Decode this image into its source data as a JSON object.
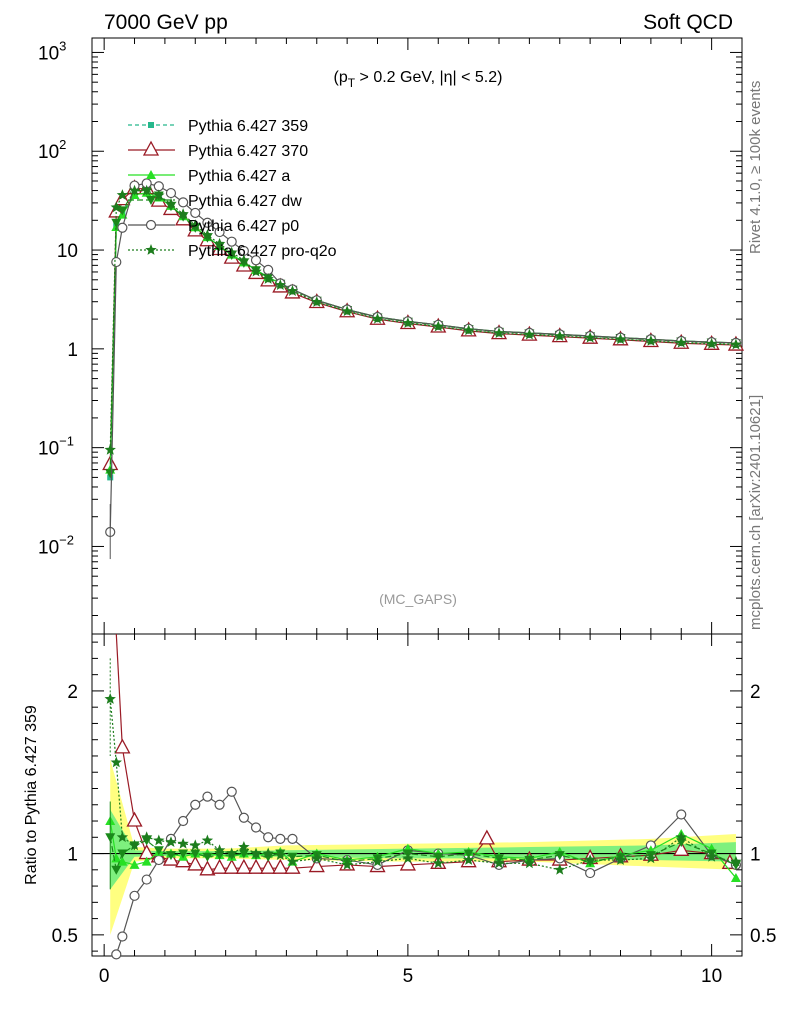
{
  "header": {
    "left": "7000 GeV pp",
    "right": "Soft QCD"
  },
  "side": {
    "rivet": "Rivet 4.1.0, ≥ 100k events",
    "mcplots": "mcplots.cern.ch [arXiv:2401.10621]"
  },
  "colors": {
    "c359": "#26b88c",
    "c370": "#9a1a25",
    "a": "#27e024",
    "dw": "#1a8a1a",
    "p0": "#555555",
    "q2o": "#1d7d1d",
    "band_yellow": "#ffff80",
    "band_green": "#7ef07e"
  },
  "chart_data": [
    {
      "type": "line",
      "panel": "main",
      "title": "(p_T > 0.2 GeV, |η| < 5.2)",
      "title_parts": {
        "p": "(p",
        "sub": "T",
        "rest": " > 0.2 GeV, |η| < 5.2)"
      },
      "watermark": "(MC_GAPS)",
      "xlabel": "",
      "ylabel": "",
      "yscale": "log",
      "xlim": [
        -0.2,
        10.5
      ],
      "ylim": [
        0.0013,
        1400
      ],
      "yticks": [
        {
          "v": 0.01,
          "base": "10",
          "exp": "−2"
        },
        {
          "v": 0.1,
          "base": "10",
          "exp": "−1"
        },
        {
          "v": 1,
          "base": "1",
          "exp": ""
        },
        {
          "v": 10,
          "base": "10",
          "exp": ""
        },
        {
          "v": 100,
          "base": "10",
          "exp": "2"
        },
        {
          "v": 1000,
          "base": "10",
          "exp": "3"
        }
      ],
      "legend_position": "top-left",
      "series": [
        {
          "id": "c359",
          "name": "Pythia 6.427 359",
          "marker": "square",
          "dash": "4,3"
        },
        {
          "id": "c370",
          "name": "Pythia 6.427 370",
          "marker": "triangle-open",
          "dash": ""
        },
        {
          "id": "a",
          "name": "Pythia 6.427 a",
          "marker": "triangle",
          "dash": ""
        },
        {
          "id": "dw",
          "name": "Pythia 6.427 dw",
          "marker": "triangle-down",
          "dash": "6,3"
        },
        {
          "id": "p0",
          "name": "Pythia 6.427 p0",
          "marker": "circle-open",
          "dash": ""
        },
        {
          "id": "q2o",
          "name": "Pythia 6.427 pro-q2o",
          "marker": "star",
          "dash": "2,2"
        }
      ],
      "x": [
        0.1,
        0.2,
        0.3,
        0.5,
        0.7,
        0.9,
        1.1,
        1.3,
        1.5,
        1.7,
        1.9,
        2.1,
        2.3,
        2.5,
        2.7,
        2.9,
        3.1,
        3.5,
        4.0,
        4.5,
        5.0,
        5.5,
        6.0,
        6.5,
        7.0,
        7.5,
        8.0,
        8.5,
        9.0,
        9.5,
        10.0,
        10.4
      ],
      "values": [
        0.05,
        18,
        24,
        38,
        38,
        34,
        28,
        22,
        17,
        13.5,
        11,
        9,
        7.5,
        6.3,
        5.3,
        4.6,
        4.0,
        3.1,
        2.5,
        2.1,
        1.9,
        1.75,
        1.6,
        1.5,
        1.45,
        1.4,
        1.35,
        1.3,
        1.25,
        1.2,
        1.17,
        1.15
      ]
    },
    {
      "type": "line",
      "panel": "ratio",
      "ylabel": "Ratio to Pythia 6.427 359",
      "xlabel": "",
      "xlim": [
        -0.2,
        10.5
      ],
      "ylim": [
        0.37,
        2.35
      ],
      "yticks": [
        0.5,
        1,
        2
      ],
      "ytick_labels": [
        "0.5",
        "1",
        "2"
      ],
      "xticks": [
        0,
        5,
        10
      ],
      "xtick_labels": [
        "0",
        "5",
        "10"
      ],
      "series": [
        {
          "id": "c370",
          "x": [
            0.2,
            0.3,
            0.5,
            0.7,
            0.9,
            1.1,
            1.3,
            1.5,
            1.7,
            1.9,
            2.1,
            2.3,
            2.5,
            2.7,
            2.9,
            3.1,
            3.5,
            4.0,
            4.5,
            5.0,
            5.5,
            6.0,
            6.3,
            6.5,
            7.0,
            7.5,
            8.0,
            8.5,
            9.0,
            9.5,
            10.0,
            10.3
          ],
          "values": [
            2.4,
            1.65,
            1.2,
            1.0,
            0.98,
            0.96,
            0.95,
            0.93,
            0.9,
            0.91,
            0.91,
            0.91,
            0.91,
            0.91,
            0.91,
            0.91,
            0.92,
            0.93,
            0.92,
            0.93,
            0.94,
            0.95,
            1.09,
            0.95,
            0.96,
            0.96,
            0.97,
            0.98,
            0.99,
            1.02,
            1.0,
            0.94
          ]
        },
        {
          "id": "p0",
          "x": [
            0.2,
            0.3,
            0.5,
            0.7,
            0.9,
            1.1,
            1.3,
            1.5,
            1.7,
            1.9,
            2.1,
            2.3,
            2.5,
            2.7,
            2.9,
            3.1,
            3.5,
            4.0,
            4.5,
            5.0,
            5.5,
            6.0,
            6.5,
            7.0,
            7.5,
            8.0,
            8.5,
            9.0,
            9.5,
            10.0,
            10.4
          ],
          "values": [
            0.38,
            0.49,
            0.74,
            0.84,
            0.96,
            1.09,
            1.2,
            1.3,
            1.35,
            1.3,
            1.38,
            1.22,
            1.16,
            1.1,
            1.09,
            1.09,
            0.97,
            0.96,
            0.93,
            1.02,
            1.0,
            0.99,
            0.93,
            0.96,
            0.97,
            0.88,
            0.97,
            1.05,
            1.24,
            0.99,
            0.93
          ]
        },
        {
          "id": "a",
          "x": [
            0.1,
            0.2,
            0.3,
            0.5,
            0.7,
            0.9,
            1.1,
            1.3,
            1.5,
            1.7,
            1.9,
            2.1,
            2.3,
            2.5,
            2.7,
            2.9,
            3.1,
            3.5,
            4.0,
            4.5,
            5.0,
            5.5,
            6.0,
            6.5,
            7.0,
            7.5,
            8.0,
            8.5,
            9.0,
            9.5,
            10.0,
            10.4
          ],
          "values": [
            1.2,
            0.97,
            0.95,
            0.93,
            0.95,
            1.01,
            1.0,
            0.98,
            1.0,
            1.0,
            0.99,
            0.98,
            1.0,
            0.99,
            1.0,
            1.01,
            0.95,
            1.0,
            0.96,
            0.98,
            1.03,
            1.0,
            1.01,
            0.98,
            0.97,
            1.01,
            0.94,
            0.99,
            1.02,
            1.12,
            1.03,
            0.85
          ]
        },
        {
          "id": "dw",
          "x": [
            0.1,
            0.2,
            0.3,
            0.5,
            0.7,
            0.9,
            1.1,
            1.3,
            1.5,
            1.7,
            1.9,
            2.1,
            2.3,
            2.5,
            2.7,
            2.9,
            3.1,
            3.5,
            4.0,
            4.5,
            5.0,
            5.5,
            6.0,
            6.5,
            7.0,
            7.5,
            8.0,
            8.5,
            9.0,
            9.5,
            10.0,
            10.4
          ],
          "values": [
            1.1,
            0.9,
            1.0,
            1.05,
            1.08,
            1.02,
            0.99,
            1.0,
            1.0,
            0.98,
            0.99,
            0.99,
            1.0,
            0.99,
            0.98,
            1.0,
            0.98,
            0.99,
            0.95,
            0.97,
            1.0,
            0.98,
            1.0,
            0.97,
            0.96,
            0.99,
            0.95,
            0.98,
            0.99,
            1.07,
            1.0,
            0.93
          ]
        },
        {
          "id": "q2o",
          "x": [
            0.1,
            0.2,
            0.3,
            0.5,
            0.7,
            0.9,
            1.1,
            1.3,
            1.5,
            1.7,
            1.9,
            2.1,
            2.3,
            2.5,
            2.7,
            2.9,
            3.1,
            3.5,
            4.0,
            4.5,
            5.0,
            5.5,
            6.0,
            6.5,
            7.0,
            7.5,
            8.0,
            8.5,
            9.0,
            9.5,
            10.0,
            10.4
          ],
          "values": [
            1.95,
            1.56,
            1.1,
            1.05,
            1.1,
            1.08,
            1.07,
            1.06,
            1.05,
            1.08,
            1.02,
            1.0,
            1.04,
            1.0,
            1.0,
            0.99,
            0.95,
            0.97,
            0.93,
            0.95,
            0.97,
            0.94,
            0.96,
            0.94,
            0.94,
            0.9,
            0.96,
            0.96,
            0.97,
            1.1,
            0.98,
            0.95
          ]
        }
      ],
      "band": {
        "x": [
          0.1,
          0.5,
          1.0,
          2.0,
          3.0,
          5.0,
          7.0,
          9.0,
          10.4
        ],
        "yellow_lo": [
          0.5,
          0.95,
          0.97,
          0.97,
          0.96,
          0.95,
          0.95,
          0.92,
          0.9
        ],
        "yellow_hi": [
          1.58,
          1.04,
          1.03,
          1.03,
          1.05,
          1.06,
          1.07,
          1.09,
          1.12
        ],
        "green_lo": [
          0.78,
          0.98,
          0.985,
          0.985,
          0.98,
          0.97,
          0.97,
          0.96,
          0.95
        ],
        "green_hi": [
          1.27,
          1.02,
          1.015,
          1.015,
          1.02,
          1.03,
          1.04,
          1.05,
          1.07
        ]
      }
    }
  ]
}
